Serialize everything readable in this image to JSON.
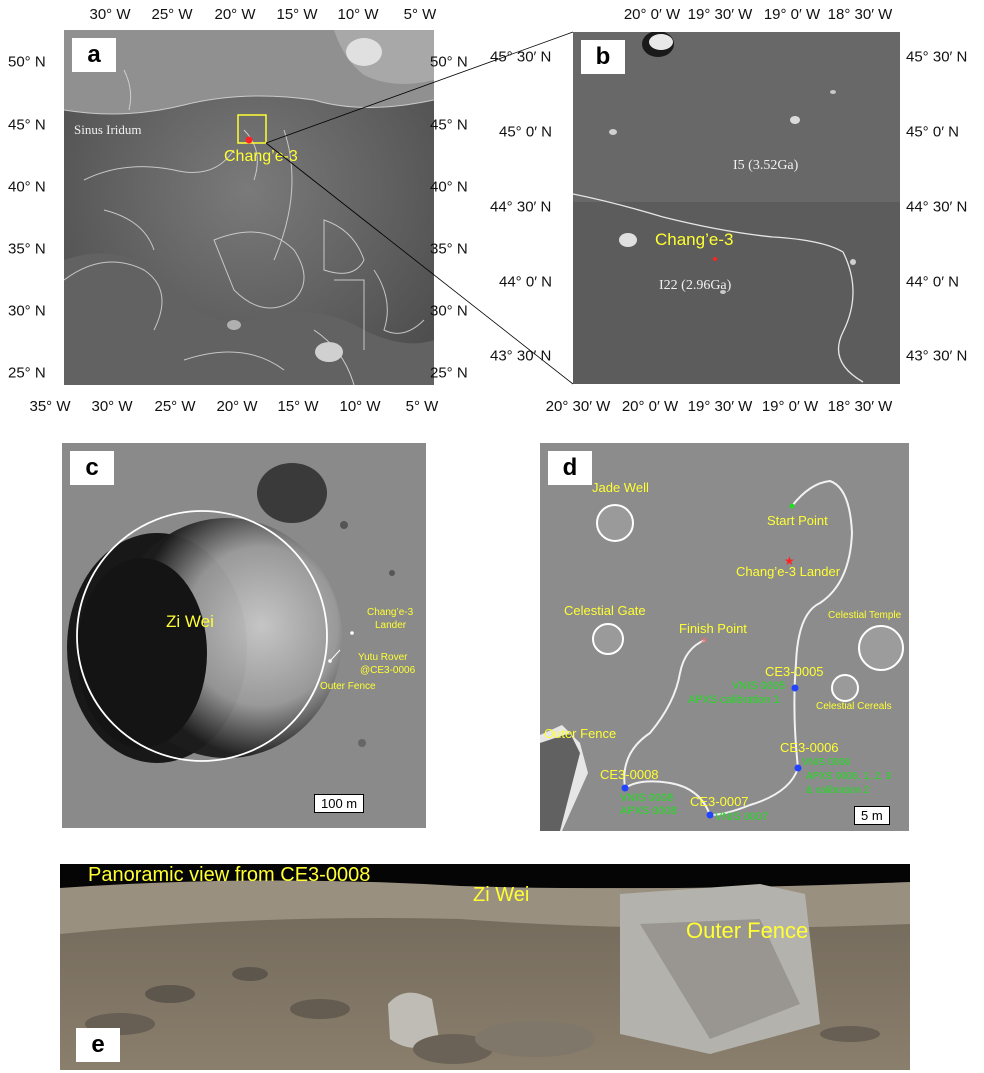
{
  "panels": {
    "a": {
      "label": "a",
      "top_ticks": [
        "30° W",
        "25° W",
        "20° W",
        "15° W",
        "10° W",
        "5° W"
      ],
      "bottom_ticks": [
        "35° W",
        "30° W",
        "25° W",
        "20° W",
        "15° W",
        "10° W",
        "5° W"
      ],
      "left_ticks": [
        "50° N",
        "45° N",
        "40° N",
        "35° N",
        "30° N",
        "25° N"
      ],
      "right_ticks": [
        "50° N",
        "45° N",
        "40° N",
        "35° N",
        "30° N",
        "25° N"
      ],
      "sinus_label": "Sinus Iridum",
      "site_label": "Chang’e-3"
    },
    "b": {
      "label": "b",
      "top_ticks": [
        "20° 0′ W",
        "19° 30′ W",
        "19° 0′ W",
        "18° 30′ W"
      ],
      "bottom_ticks": [
        "20° 30′ W",
        "20° 0′ W",
        "19° 30′ W",
        "19° 0′ W",
        "18° 30′ W"
      ],
      "left_ticks": [
        "45° 30′ N",
        "45° 0′ N",
        "44° 30′ N",
        "44° 0′ N",
        "43° 30′ N"
      ],
      "right_ticks": [
        "45° 30′ N",
        "45° 0′ N",
        "44° 30′ N",
        "44° 0′ N",
        "43° 30′ N"
      ],
      "unit_north": "I5 (3.52Ga)",
      "unit_south": "I22 (2.96Ga)",
      "site_label": "Chang’e-3"
    },
    "c": {
      "label": "c",
      "crater_label": "Zi Wei",
      "lander_label_1": "Chang’e-3",
      "lander_label_2": "Lander",
      "rover_label_1": "Yutu Rover",
      "rover_label_2": "@CE3-0006",
      "fence_label": "Outer Fence",
      "scale_label": "100 m"
    },
    "d": {
      "label": "d",
      "craters": {
        "jade_well": "Jade Well",
        "celestial_gate": "Celestial Gate",
        "celestial_temple": "Celestial Temple",
        "celestial_cereals": "Celestial Cereals"
      },
      "start_point": "Start Point",
      "lander": "Chang’e-3 Lander",
      "finish_point": "Finish Point",
      "outer_fence": "Outer Fence",
      "stations": {
        "ce3_0005": "CE3-0005",
        "ce3_0005_vnis": "VNIS 0005",
        "ce3_0005_apxs": "APXS calibration 1",
        "ce3_0006": "CE3-0006",
        "ce3_0006_vnis": "VNIS 0006",
        "ce3_0006_apxs": "APXS 0006, 1, 2, 3",
        "ce3_0006_cal": "& calibration 2",
        "ce3_0007": "CE3-0007",
        "ce3_0007_vnis": "VNIS 0007",
        "ce3_0008": "CE3-0008",
        "ce3_0008_vnis": "VNIS 0008",
        "ce3_0008_apxs": "APXS 0008"
      },
      "scale_label": "5 m"
    },
    "e": {
      "label": "e",
      "title": "Panoramic view from CE3-0008",
      "zi_wei": "Zi Wei",
      "outer_fence": "Outer Fence"
    }
  },
  "colors": {
    "label_yellow": "#ffff33",
    "label_green": "#22dd22",
    "traverse": "#ffffff",
    "lander_marker": "#ff2222",
    "station_marker": "#2244ff"
  }
}
